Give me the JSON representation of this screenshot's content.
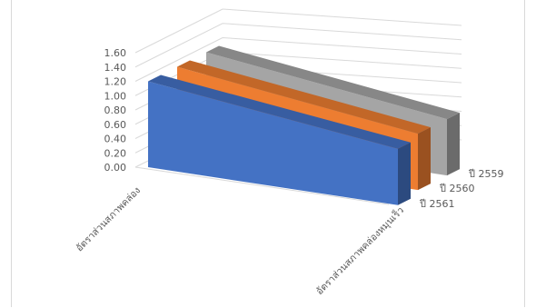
{
  "chart_data": {
    "type": "area",
    "variant": "3d-area",
    "categories": [
      "อัตราส่วนสภาพคล่อง",
      "อัตราส่วนสภาพคล่องหมุนเร็ว"
    ],
    "series": [
      {
        "name": "ปี 2561",
        "values": [
          1.2,
          0.0
        ],
        "color": "#4472c4"
      },
      {
        "name": "ปี 2560",
        "values": [
          1.2,
          0.0
        ],
        "color": "#ed7d31"
      },
      {
        "name": "ปี 2559",
        "values": [
          1.2,
          0.0
        ],
        "color": "#a5a5a5"
      }
    ],
    "ylim": [
      0,
      1.6
    ],
    "yticks": [
      "0.00",
      "0.20",
      "0.40",
      "0.60",
      "0.80",
      "1.00",
      "1.20",
      "1.40",
      "1.60"
    ],
    "grid": true
  }
}
